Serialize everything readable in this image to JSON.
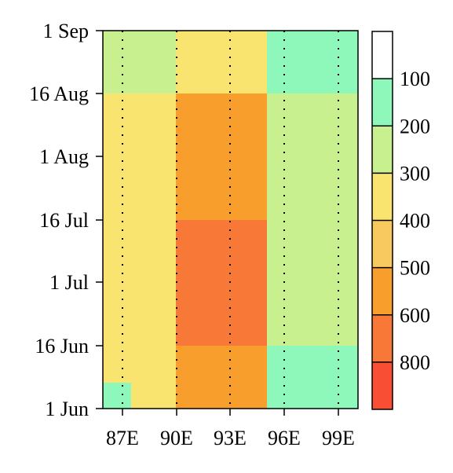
{
  "chart_data": {
    "type": "heatmap",
    "x_categories": [
      "86–88",
      "88–90",
      "90–95",
      "95–100"
    ],
    "y_categories": [
      "1–10 Jun",
      "10–16 Jun",
      "16 Jun–16 Jul",
      "16 Jul–16 Aug",
      "16 Aug–1 Sep"
    ],
    "x_tick_labels": [
      "87E",
      "90E",
      "93E",
      "96E",
      "99E"
    ],
    "y_tick_labels": [
      "1 Jun",
      "16 Jun",
      "1 Jul",
      "16 Jul",
      "1 Aug",
      "16 Aug",
      "1 Sep"
    ],
    "cells": [
      [
        "100-200",
        "300-400",
        "500-600",
        "100-200"
      ],
      [
        "300-400",
        "300-400",
        "500-600",
        "100-200"
      ],
      [
        "300-400",
        "300-400",
        "600-800",
        "200-300"
      ],
      [
        "300-400",
        "300-400",
        "500-600",
        "200-300"
      ],
      [
        "200-300",
        "200-300",
        "300-400",
        "100-200"
      ]
    ],
    "colorbar": {
      "labels": [
        "100",
        "200",
        "300",
        "400",
        "500",
        "600",
        "800"
      ],
      "bins": [
        {
          "range": "0-100",
          "color": "#ffffff"
        },
        {
          "range": "100-200",
          "color": "#8ef8bb"
        },
        {
          "range": "200-300",
          "color": "#c9f08f"
        },
        {
          "range": "300-400",
          "color": "#f8e46e"
        },
        {
          "range": "400-500",
          "color": "#f8c95e"
        },
        {
          "range": "500-600",
          "color": "#f89e2c"
        },
        {
          "range": "600-800",
          "color": "#f87838"
        },
        {
          "range": ">800",
          "color": "#f84e34"
        }
      ]
    },
    "grid": "dotted vertical lines at longitude ticks"
  }
}
